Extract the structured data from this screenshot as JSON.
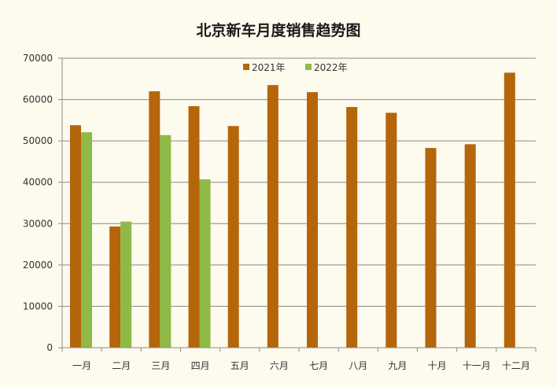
{
  "chart_data": {
    "type": "bar",
    "title": "北京新车月度销售趋势图",
    "xlabel": "",
    "ylabel": "",
    "categories": [
      "一月",
      "二月",
      "三月",
      "四月",
      "五月",
      "六月",
      "七月",
      "八月",
      "九月",
      "十月",
      "十一月",
      "十二月"
    ],
    "series": [
      {
        "name": "2021年",
        "color": "#b5650a",
        "values": [
          53800,
          29300,
          62000,
          58400,
          53600,
          63500,
          61800,
          58200,
          56800,
          48300,
          49200,
          66500
        ]
      },
      {
        "name": "2022年",
        "color": "#8fba45",
        "values": [
          52100,
          30500,
          51400,
          40700,
          null,
          null,
          null,
          null,
          null,
          null,
          null,
          null
        ]
      }
    ],
    "ylim": [
      0,
      70000
    ],
    "yticks": [
      0,
      10000,
      20000,
      30000,
      40000,
      50000,
      60000,
      70000
    ],
    "grid": true,
    "legend_position": "top-center"
  }
}
